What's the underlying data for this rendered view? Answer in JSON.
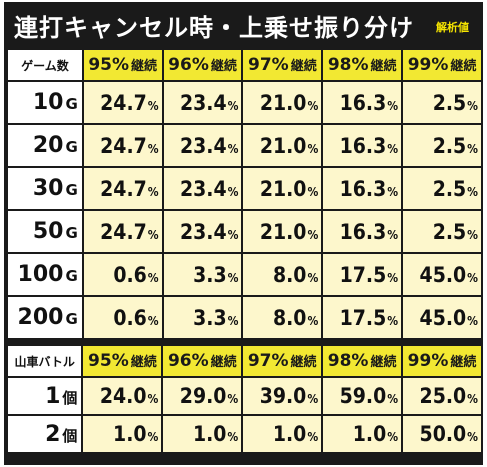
{
  "title": "連打キャンセル時・上乗せ振り分け",
  "badge": "解析値",
  "table1": {
    "corner": "ゲーム数",
    "headers": [
      {
        "pct": "95%",
        "label": "継続"
      },
      {
        "pct": "96%",
        "label": "継続"
      },
      {
        "pct": "97%",
        "label": "継続"
      },
      {
        "pct": "98%",
        "label": "継続"
      },
      {
        "pct": "99%",
        "label": "継続"
      }
    ],
    "rows": [
      {
        "num": "10",
        "unit": "G",
        "values": [
          "24.7",
          "23.4",
          "21.0",
          "16.3",
          "2.5"
        ]
      },
      {
        "num": "20",
        "unit": "G",
        "values": [
          "24.7",
          "23.4",
          "21.0",
          "16.3",
          "2.5"
        ]
      },
      {
        "num": "30",
        "unit": "G",
        "values": [
          "24.7",
          "23.4",
          "21.0",
          "16.3",
          "2.5"
        ]
      },
      {
        "num": "50",
        "unit": "G",
        "values": [
          "24.7",
          "23.4",
          "21.0",
          "16.3",
          "2.5"
        ]
      },
      {
        "num": "100",
        "unit": "G",
        "values": [
          "0.6",
          "3.3",
          "8.0",
          "17.5",
          "45.0"
        ]
      },
      {
        "num": "200",
        "unit": "G",
        "values": [
          "0.6",
          "3.3",
          "8.0",
          "17.5",
          "45.0"
        ]
      }
    ]
  },
  "table2": {
    "corner": "山車バトル",
    "headers": [
      {
        "pct": "95%",
        "label": "継続"
      },
      {
        "pct": "96%",
        "label": "継続"
      },
      {
        "pct": "97%",
        "label": "継続"
      },
      {
        "pct": "98%",
        "label": "継続"
      },
      {
        "pct": "99%",
        "label": "継続"
      }
    ],
    "rows": [
      {
        "num": "1",
        "unit": "個",
        "values": [
          "24.0",
          "29.0",
          "39.0",
          "59.0",
          "25.0"
        ]
      },
      {
        "num": "2",
        "unit": "個",
        "values": [
          "1.0",
          "1.0",
          "1.0",
          "1.0",
          "50.0"
        ]
      }
    ]
  },
  "pct_sign": "%"
}
